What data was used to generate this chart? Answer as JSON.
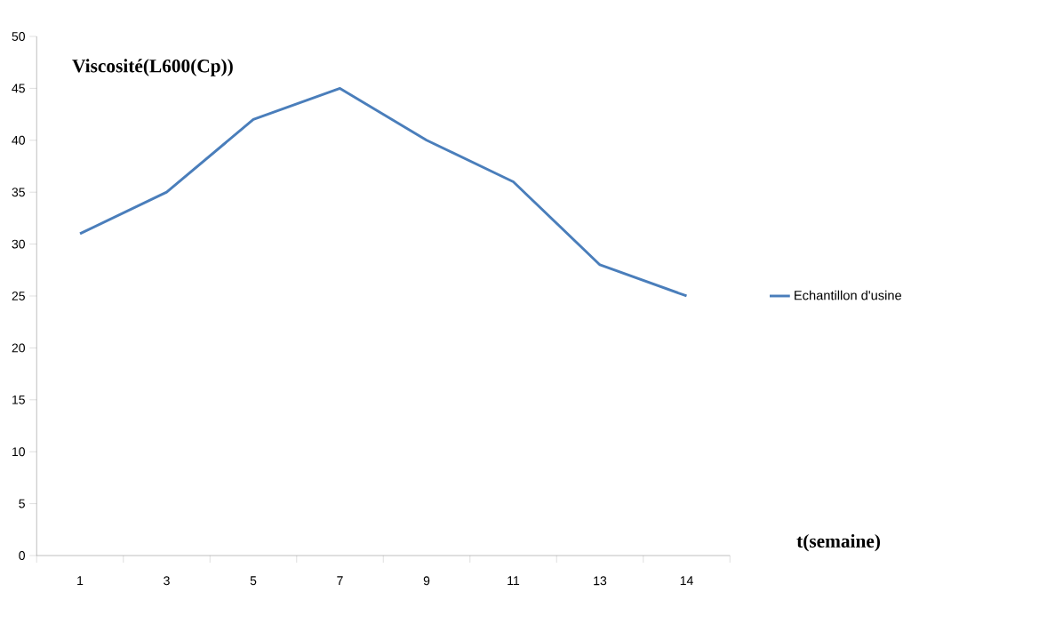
{
  "chart_data": {
    "type": "line",
    "xlabel": "t(semaine)",
    "ylabel": "Viscosité(L600(Cp))",
    "categories": [
      "1",
      "3",
      "5",
      "7",
      "9",
      "11",
      "13",
      "14"
    ],
    "series": [
      {
        "name": "Echantillon d'usine",
        "color": "#4a7ebb",
        "values": [
          31,
          35,
          42,
          45,
          40,
          36,
          28,
          25
        ]
      }
    ],
    "ylim": [
      0,
      50
    ],
    "yticks": [
      0,
      5,
      10,
      15,
      20,
      25,
      30,
      35,
      40,
      45,
      50
    ],
    "grid": false,
    "legend": "right",
    "marker": "none",
    "line_style": "solid"
  }
}
